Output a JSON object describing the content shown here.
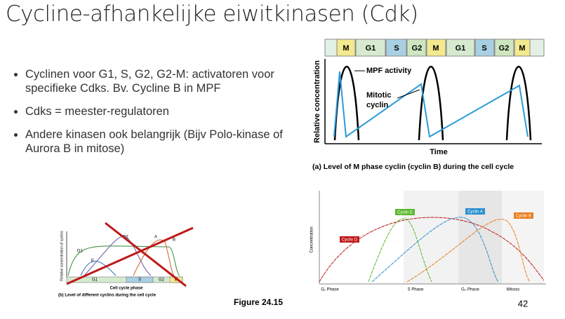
{
  "header": {
    "title": "Cycline-afhankelijke eiwitkinasen (Cdk)"
  },
  "bullets": [
    "Cyclinen voor G1, S,  G2, G2-M: activatoren voor specifieke Cdks. Bv. Cycline B in MPF",
    "Cdks = meester-regulatoren",
    "Andere kinasen ook belangrijk (Bijv Polo-kinase of Aurora B in mitose)"
  ],
  "figure_a": {
    "phases": [
      "M",
      "G1",
      "S",
      "G2",
      "M",
      "G1",
      "S",
      "G2",
      "M"
    ],
    "y_label": "Relative concentration",
    "mpf_label": "MPF activity",
    "cyclin_label_lines": [
      "Mitotic",
      "cyclin"
    ],
    "x_label": "Time",
    "caption": "(a) Level of M phase cyclin (cyclin B) during the cell cycle"
  },
  "figure_b": {
    "y_label": "Relative concentration of cyclins",
    "curve_labels": [
      "D1",
      "D2",
      "E",
      "A",
      "B"
    ],
    "phases": [
      "G1",
      "S",
      "G2",
      "M"
    ],
    "x_label": "Cell cycle phase",
    "caption": "(b) Level of different cyclins during the cell cycle"
  },
  "figure_c": {
    "y_label": "Concentration",
    "curve_labels": [
      "Cyclin D",
      "Cyclin E",
      "Cyclin A",
      "Cyclin B"
    ],
    "phases": [
      "G₁ Phase",
      "S Phase",
      "G₂ Phase",
      "Mitosis"
    ]
  },
  "figure_number": "Figure 24.15",
  "page_number": "42"
}
